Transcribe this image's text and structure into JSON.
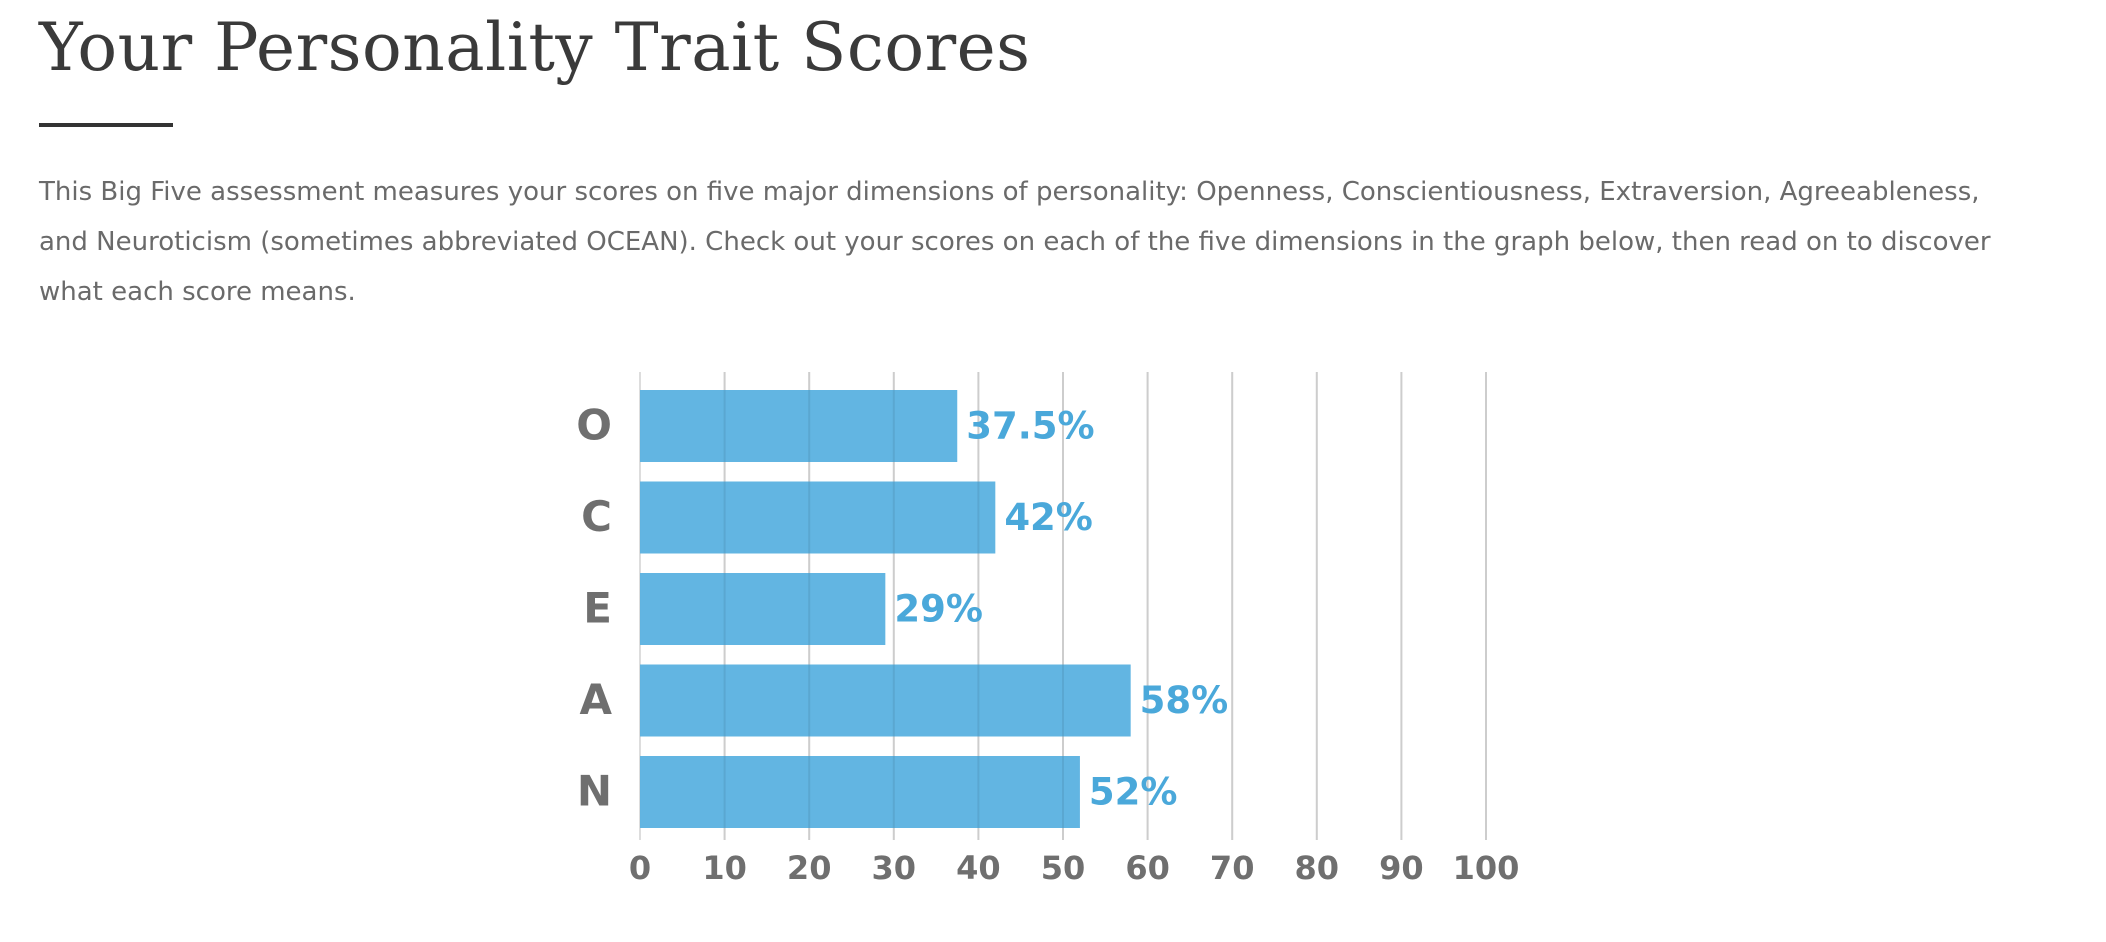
{
  "header": {
    "title": "Your Personality Trait Scores",
    "intro": "This Big Five assessment measures your scores on five major dimensions of personality: Openness, Conscientiousness, Extraversion, Agreeableness, and Neuroticism (sometimes abbreviated OCEAN). Check out your scores on each of the five dimensions in the graph below, then read on to discover what each score means."
  },
  "colors": {
    "bar": "#5ab1e0",
    "value_label": "#4aa8da",
    "grid": "#dddddd",
    "text": "#6f6f6f"
  },
  "chart_data": {
    "type": "bar",
    "orientation": "horizontal",
    "title": "",
    "xlabel": "",
    "ylabel": "",
    "categories": [
      "O",
      "C",
      "E",
      "A",
      "N"
    ],
    "values": [
      37.5,
      42,
      29,
      58,
      52
    ],
    "value_labels": [
      "37.5%",
      "42%",
      "29%",
      "58%",
      "52%"
    ],
    "xlim": [
      0,
      100
    ],
    "x_ticks": [
      "0",
      "10",
      "20",
      "30",
      "40",
      "50",
      "60",
      "70",
      "80",
      "90",
      "100"
    ],
    "grid": true,
    "legend": "none"
  }
}
